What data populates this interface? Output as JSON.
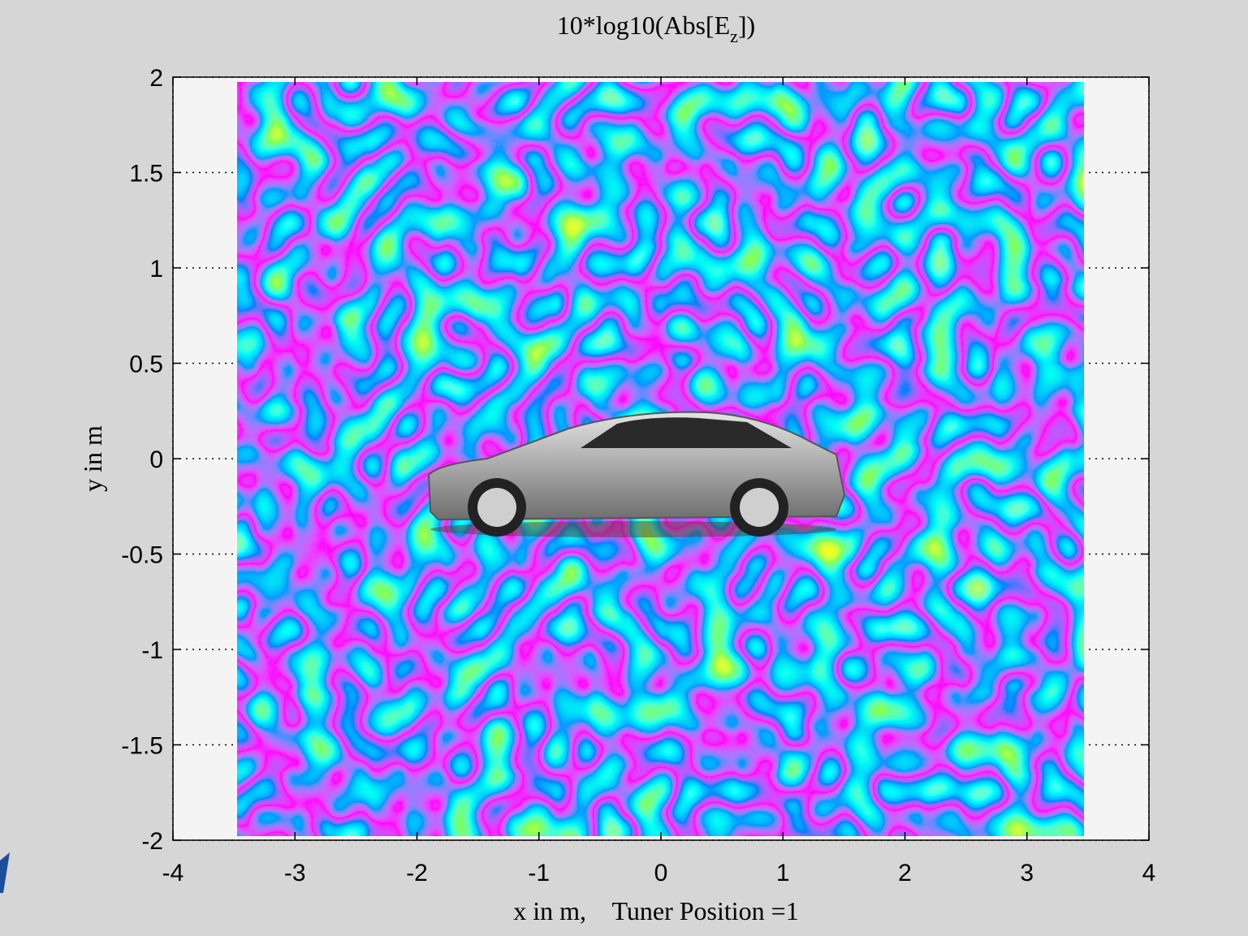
{
  "chart_data": {
    "type": "field-map",
    "title": [
      "10*log10(Abs[E",
      "z",
      "])"
    ],
    "x_label": "x in m,    Tuner Position =1",
    "y_label": "y in m",
    "xlim": [
      -4,
      4
    ],
    "xticks": [
      -4,
      -3,
      -2,
      -1,
      0,
      1,
      2,
      3,
      4
    ],
    "ylim": [
      -2,
      2
    ],
    "yticks": [
      -2,
      -1.5,
      -1,
      -0.5,
      0,
      0.5,
      1,
      1.5,
      2
    ],
    "grid": true
  }
}
